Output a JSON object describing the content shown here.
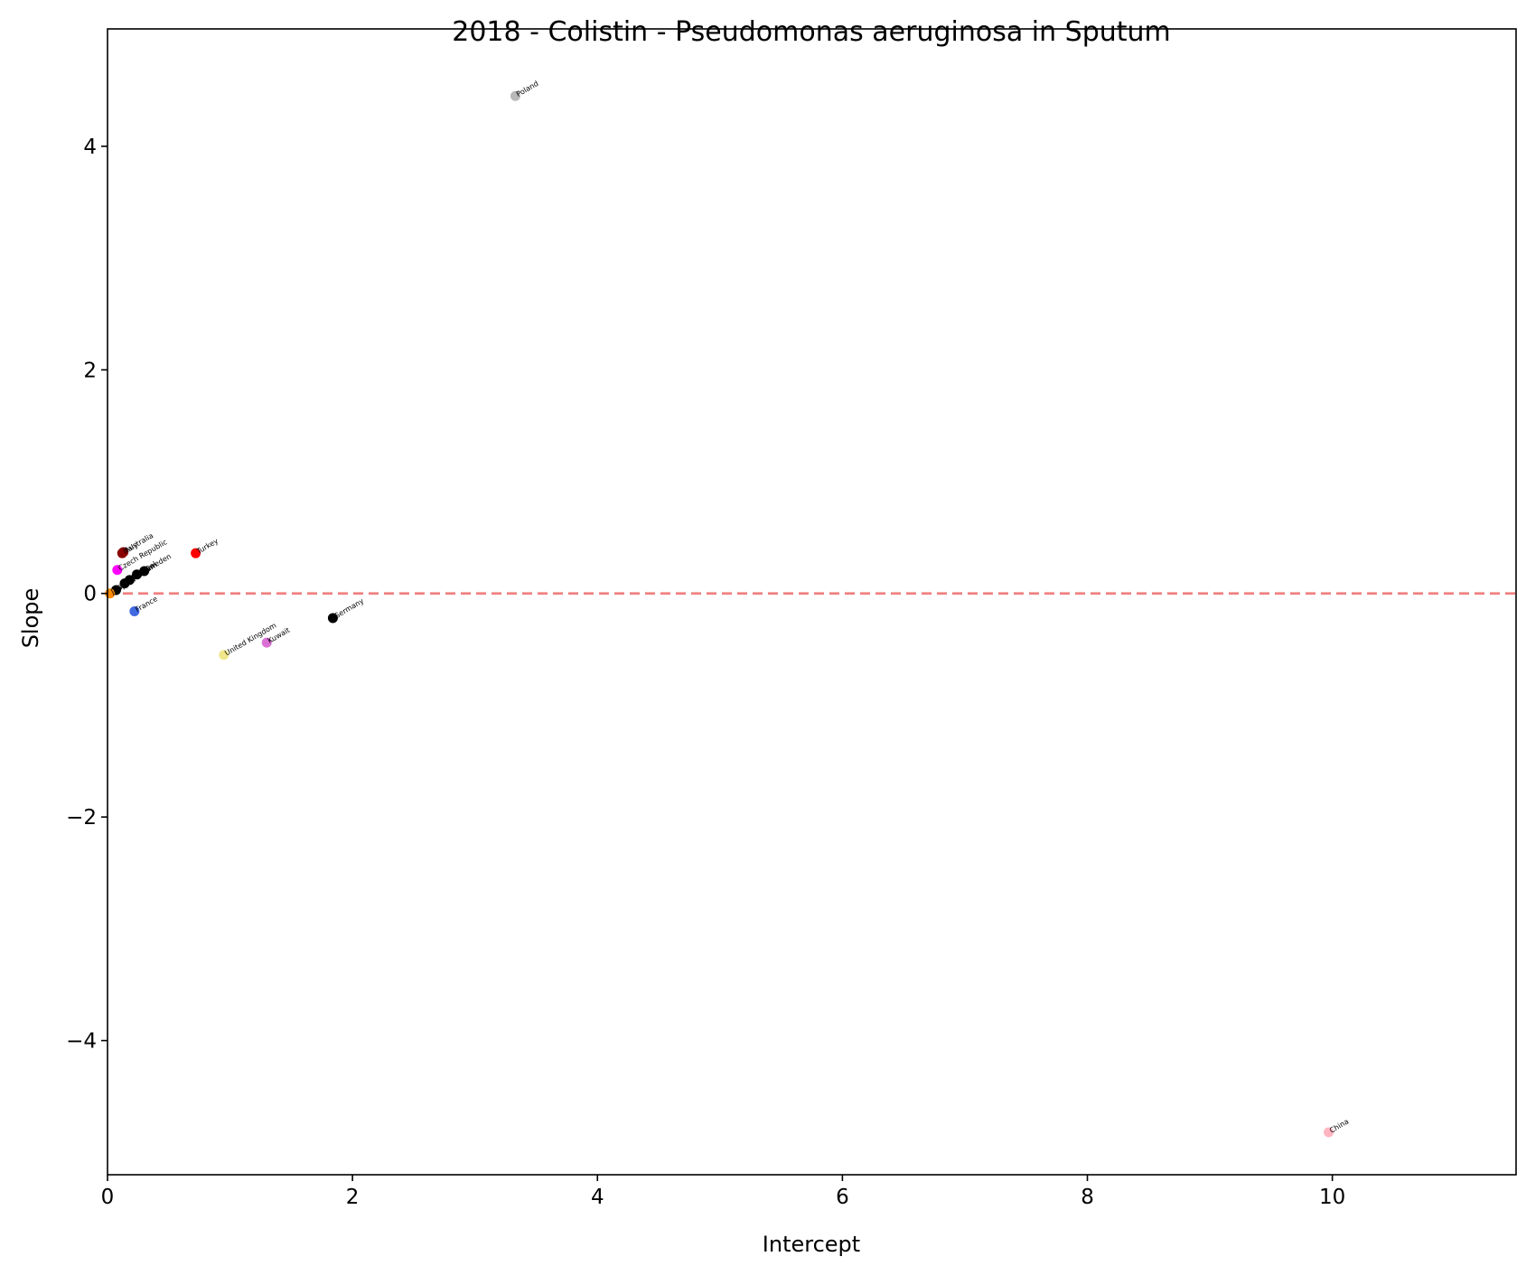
{
  "chart_data": {
    "type": "scatter",
    "title": "2018 - Colistin - Pseudomonas aeruginosa in Sputum",
    "xlabel": "Intercept",
    "ylabel": "Slope",
    "xlim": [
      0,
      11.5
    ],
    "ylim": [
      -5.2,
      5.05
    ],
    "xticks": [
      0,
      2,
      4,
      6,
      8,
      10
    ],
    "yticks": [
      -4,
      -2,
      0,
      2,
      4
    ],
    "xtick_labels": [
      "0",
      "2",
      "4",
      "6",
      "8",
      "10"
    ],
    "ytick_labels": [
      "−4",
      "−2",
      "0",
      "2",
      "4"
    ],
    "reference_line": {
      "y": 0,
      "style": "dashed",
      "color": "#f08080"
    },
    "grid": false,
    "points": [
      {
        "label": "Poland",
        "x": 3.33,
        "y": 4.45,
        "color": "#b8b8b8"
      },
      {
        "label": "Australia",
        "x": 0.13,
        "y": 0.37,
        "color": "#800000"
      },
      {
        "label": "Italy",
        "x": 0.12,
        "y": 0.36,
        "color": "#8b0000"
      },
      {
        "label": "Czech Republic",
        "x": 0.08,
        "y": 0.21,
        "color": "#ff00ff"
      },
      {
        "label": "Belgium",
        "x": 0.18,
        "y": 0.12,
        "color": "#000000"
      },
      {
        "label": "Taiwan",
        "x": 0.14,
        "y": 0.09,
        "color": "#000000"
      },
      {
        "label": "Israel",
        "x": 0.24,
        "y": 0.17,
        "color": "#000000"
      },
      {
        "label": "Sweden",
        "x": 0.3,
        "y": 0.2,
        "color": "#000000"
      },
      {
        "label": "Spain",
        "x": 0.07,
        "y": 0.03,
        "color": "#000000"
      },
      {
        "label": "Japan",
        "x": 0.02,
        "y": 0.0,
        "color": "#ff8c00"
      },
      {
        "label": "Turkey",
        "x": 0.72,
        "y": 0.36,
        "color": "#ff0000"
      },
      {
        "label": "France",
        "x": 0.22,
        "y": -0.16,
        "color": "#4169e1"
      },
      {
        "label": "United Kingdom",
        "x": 0.95,
        "y": -0.55,
        "color": "#f0e68c"
      },
      {
        "label": "Kuwait",
        "x": 1.3,
        "y": -0.44,
        "color": "#da70d6"
      },
      {
        "label": "Germany",
        "x": 1.84,
        "y": -0.22,
        "color": "#000000"
      },
      {
        "label": "China",
        "x": 9.97,
        "y": -4.82,
        "color": "#ffb6c1"
      }
    ]
  }
}
